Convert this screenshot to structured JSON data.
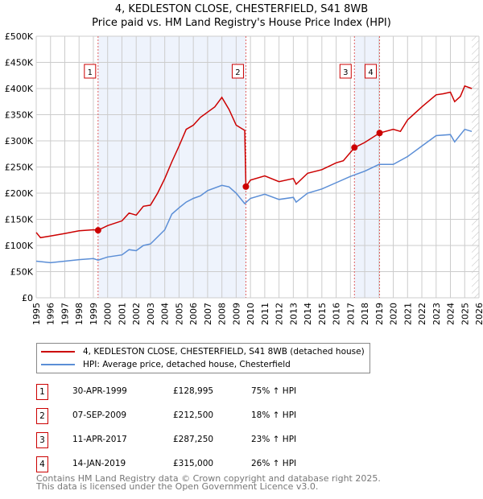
{
  "chart_data": {
    "type": "line",
    "title": "4, KEDLESTON CLOSE, CHESTERFIELD, S41 8WB",
    "subtitle": "Price paid vs. HM Land Registry's House Price Index (HPI)",
    "xlim": [
      1995,
      2026
    ],
    "ylim": [
      0,
      500000
    ],
    "x_ticks": [
      "1995",
      "1996",
      "1997",
      "1998",
      "1999",
      "2000",
      "2001",
      "2002",
      "2003",
      "2004",
      "2005",
      "2006",
      "2007",
      "2008",
      "2009",
      "2010",
      "2011",
      "2012",
      "2013",
      "2014",
      "2015",
      "2016",
      "2017",
      "2018",
      "2019",
      "2020",
      "2021",
      "2022",
      "2023",
      "2024",
      "2025",
      "2026"
    ],
    "y_ticks": [
      {
        "v": 0,
        "label": "£0"
      },
      {
        "v": 50000,
        "label": "£50K"
      },
      {
        "v": 100000,
        "label": "£100K"
      },
      {
        "v": 150000,
        "label": "£150K"
      },
      {
        "v": 200000,
        "label": "£200K"
      },
      {
        "v": 250000,
        "label": "£250K"
      },
      {
        "v": 300000,
        "label": "£300K"
      },
      {
        "v": 350000,
        "label": "£350K"
      },
      {
        "v": 400000,
        "label": "£400K"
      },
      {
        "v": 450000,
        "label": "£450K"
      },
      {
        "v": 500000,
        "label": "£500K"
      }
    ],
    "grid": true,
    "shaded_ranges": [
      [
        1999.33,
        2009.68
      ],
      [
        2017.28,
        2019.04
      ]
    ],
    "forecast_hatch_from": 2025.5,
    "series": [
      {
        "name": "4, KEDLESTON CLOSE, CHESTERFIELD, S41 8WB (detached house)",
        "color": "#cc0000",
        "x": [
          1995,
          1995.3,
          1996,
          1997,
          1998,
          1999,
          1999.33,
          2000,
          2001,
          2001.5,
          2002,
          2002.5,
          2003,
          2003.5,
          2004,
          2004.5,
          2005,
          2005.5,
          2006,
          2006.5,
          2007,
          2007.5,
          2008,
          2008.5,
          2009,
          2009.6,
          2009.68,
          2010,
          2011,
          2012,
          2013,
          2013.2,
          2014,
          2015,
          2016,
          2016.5,
          2017.28,
          2018,
          2019.04,
          2020,
          2020.5,
          2021,
          2022,
          2023,
          2023.5,
          2024,
          2024.3,
          2024.7,
          2025,
          2025.5
        ],
        "y": [
          125,
          115,
          118,
          123,
          128,
          130,
          129,
          138,
          147,
          162,
          158,
          175,
          177,
          200,
          228,
          260,
          290,
          322,
          330,
          345,
          355,
          365,
          383,
          360,
          330,
          320,
          212.5,
          225,
          233,
          222,
          228,
          217,
          238,
          245,
          258,
          262,
          287,
          297,
          315,
          322,
          318,
          340,
          365,
          388,
          390,
          393,
          375,
          385,
          405,
          400
        ]
      },
      {
        "name": "HPI: Average price, detached house, Chesterfield",
        "color": "#5b8ed6",
        "x": [
          1995,
          1996,
          1997,
          1998,
          1999,
          1999.33,
          2000,
          2001,
          2001.5,
          2002,
          2002.5,
          2003,
          2004,
          2004.5,
          2005,
          2005.5,
          2006,
          2006.5,
          2007,
          2008,
          2008.5,
          2009,
          2009.6,
          2010,
          2011,
          2012,
          2013,
          2013.2,
          2014,
          2015,
          2016,
          2017,
          2018,
          2019,
          2020,
          2021,
          2022,
          2023,
          2024,
          2024.3,
          2025,
          2025.5
        ],
        "y": [
          70,
          67,
          70,
          73,
          75,
          72,
          78,
          82,
          92,
          90,
          100,
          103,
          130,
          160,
          172,
          183,
          190,
          195,
          205,
          215,
          212,
          200,
          180,
          190,
          198,
          188,
          192,
          183,
          200,
          208,
          220,
          232,
          242,
          255,
          255,
          270,
          290,
          310,
          312,
          298,
          322,
          318
        ]
      }
    ],
    "y_units": "thousands GBP",
    "sales": [
      {
        "n": "1",
        "x": 1999.33,
        "y": 128.995,
        "date": "30-APR-1999",
        "price": "£128,995",
        "hpi": "75% ↑ HPI"
      },
      {
        "n": "2",
        "x": 2009.68,
        "y": 212.5,
        "date": "07-SEP-2009",
        "price": "£212,500",
        "hpi": "18% ↑ HPI"
      },
      {
        "n": "3",
        "x": 2017.28,
        "y": 287.25,
        "date": "11-APR-2017",
        "price": "£287,250",
        "hpi": "23% ↑ HPI"
      },
      {
        "n": "4",
        "x": 2019.04,
        "y": 315,
        "date": "14-JAN-2019",
        "price": "£315,000",
        "hpi": "26% ↑ HPI"
      }
    ]
  },
  "footer": [
    "Contains HM Land Registry data © Crown copyright and database right 2025.",
    "This data is licensed under the Open Government Licence v3.0."
  ]
}
